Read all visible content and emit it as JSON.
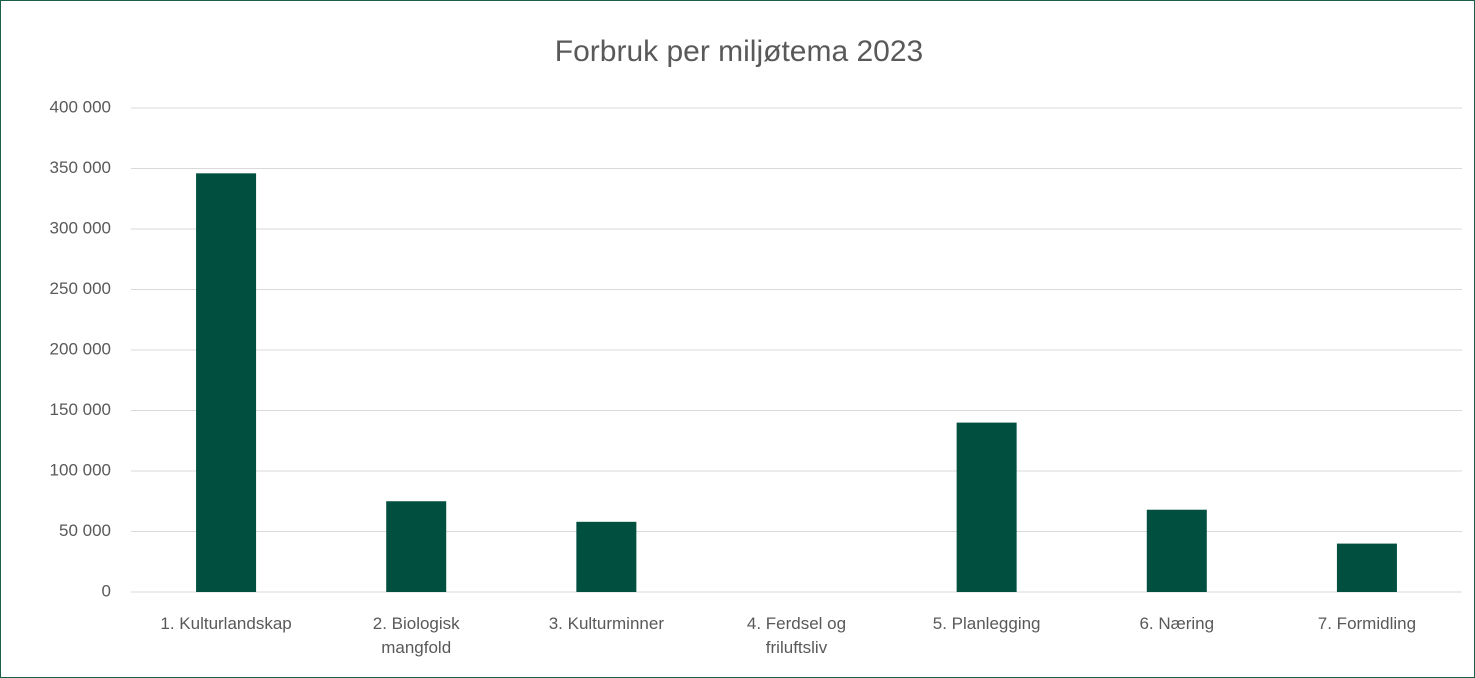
{
  "chart_data": {
    "type": "bar",
    "title": "Forbruk per miljøtema 2023",
    "categories": [
      "1. Kulturlandskap",
      "2. Biologisk\nmangfold",
      "3. Kulturminner",
      "4. Ferdsel og\nfriluftsliv",
      "5. Planlegging",
      "6. Næring",
      "7. Formidling"
    ],
    "values": [
      346000,
      75000,
      58000,
      0,
      140000,
      68000,
      40000
    ],
    "color": "#004f3f",
    "ylim": [
      0,
      400000
    ],
    "yticks": [
      0,
      {
        "value": 50000,
        "label": "50 000"
      },
      {
        "value": 100000,
        "label": "100 000"
      },
      {
        "value": 150000,
        "label": "150 000"
      },
      {
        "value": 200000,
        "label": "200 000"
      },
      {
        "value": 250000,
        "label": "250 000"
      },
      {
        "value": 300000,
        "label": "300 000"
      },
      {
        "value": 350000,
        "label": "350 000"
      },
      {
        "value": 400000,
        "label": "400 000"
      }
    ],
    "grid": true
  }
}
